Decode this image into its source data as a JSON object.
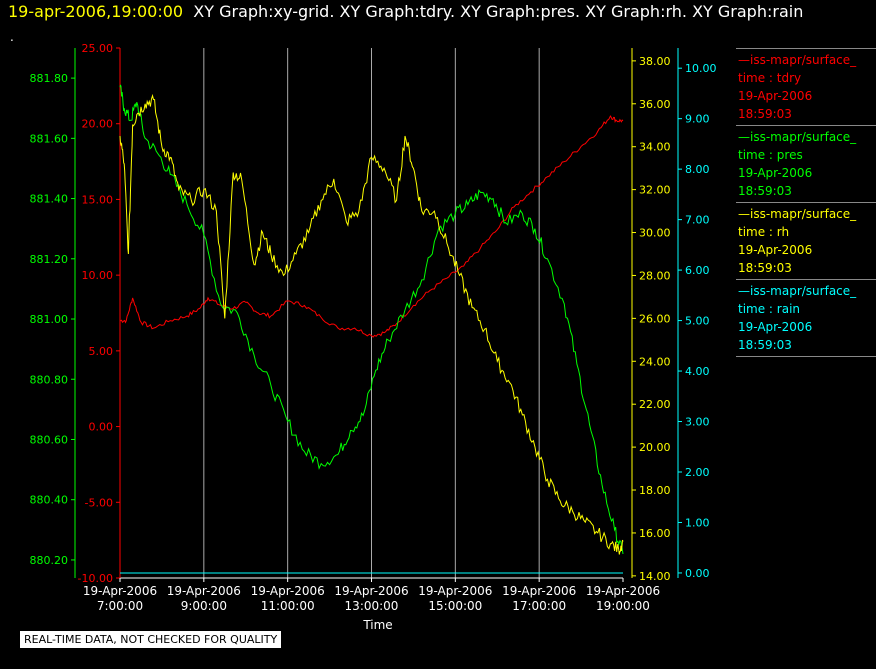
{
  "header": {
    "timestamp": "19-apr-2006,19:00:00",
    "graphs": "XY Graph:xy-grid.  XY Graph:tdry.  XY Graph:pres.  XY Graph:rh.  XY Graph:rain"
  },
  "dot": ".",
  "footer_note": "REAL-TIME DATA, NOT CHECKED FOR QUALITY",
  "legend": [
    {
      "source": "—iss-mapr/surface_",
      "field": "time : tdry",
      "date": "19-Apr-2006",
      "time": "18:59:03",
      "color": "#ff0000"
    },
    {
      "source": "—iss-mapr/surface_",
      "field": "time : pres",
      "date": "19-Apr-2006",
      "time": "18:59:03",
      "color": "#00ff00"
    },
    {
      "source": "—iss-mapr/surface_",
      "field": "time : rh",
      "date": "19-Apr-2006",
      "time": "18:59:03",
      "color": "#ffff00"
    },
    {
      "source": "—iss-mapr/surface_",
      "field": "time : rain",
      "date": "19-Apr-2006",
      "time": "18:59:03",
      "color": "#00ffff"
    }
  ],
  "chart_data": {
    "type": "line",
    "xlabel": "Time",
    "x_ticks": [
      {
        "hour": 7,
        "date": "19-Apr-2006",
        "time": "7:00:00"
      },
      {
        "hour": 9,
        "date": "19-Apr-2006",
        "time": "9:00:00"
      },
      {
        "hour": 11,
        "date": "19-Apr-2006",
        "time": "11:00:00"
      },
      {
        "hour": 13,
        "date": "19-Apr-2006",
        "time": "13:00:00"
      },
      {
        "hour": 15,
        "date": "19-Apr-2006",
        "time": "15:00:00"
      },
      {
        "hour": 17,
        "date": "19-Apr-2006",
        "time": "17:00:00"
      },
      {
        "hour": 19,
        "date": "19-Apr-2006",
        "time": "19:00:00"
      }
    ],
    "xlim": [
      7,
      19
    ],
    "grid": "vertical",
    "axes": {
      "pres": {
        "color": "#00ff00",
        "side": "left-outer",
        "lim": [
          880.14,
          881.9
        ],
        "ticks": [
          "880.20",
          "880.40",
          "880.60",
          "880.80",
          "881.00",
          "881.20",
          "881.40",
          "881.60",
          "881.80"
        ]
      },
      "tdry": {
        "color": "#ff0000",
        "side": "left-inner",
        "lim": [
          -10,
          25
        ],
        "ticks": [
          "-10.00",
          "-5.00",
          "0.00",
          "5.00",
          "10.00",
          "15.00",
          "20.00",
          "25.00"
        ]
      },
      "rh": {
        "color": "#ffff00",
        "side": "right-inner",
        "lim": [
          13.9,
          38.6
        ],
        "ticks": [
          "14.00",
          "16.00",
          "18.00",
          "20.00",
          "22.00",
          "24.00",
          "26.00",
          "28.00",
          "30.00",
          "32.00",
          "34.00",
          "36.00",
          "38.00"
        ]
      },
      "rain": {
        "color": "#00ffff",
        "side": "right-outer",
        "lim": [
          -0.1,
          10.4
        ],
        "ticks": [
          "0.00",
          "1.00",
          "2.00",
          "3.00",
          "4.00",
          "5.00",
          "6.00",
          "7.00",
          "8.00",
          "9.00",
          "10.00"
        ]
      }
    },
    "series": [
      {
        "name": "tdry",
        "axis": "tdry",
        "color": "#ff0000",
        "x": [
          7.0,
          7.15,
          7.3,
          7.5,
          7.8,
          8.2,
          8.6,
          8.9,
          9.1,
          9.4,
          9.7,
          10.0,
          10.3,
          10.6,
          11.0,
          11.4,
          11.8,
          12.2,
          12.6,
          13.0,
          13.3,
          13.6,
          14.0,
          14.4,
          14.8,
          15.2,
          15.6,
          16.0,
          16.4,
          16.8,
          17.2,
          17.6,
          18.0,
          18.4,
          18.7,
          18.85,
          19.0
        ],
        "values": [
          7.0,
          7.0,
          8.5,
          6.9,
          6.5,
          7.0,
          7.3,
          7.8,
          8.5,
          8.0,
          7.8,
          8.2,
          7.5,
          7.3,
          8.3,
          8.0,
          7.2,
          6.5,
          6.5,
          6.0,
          6.2,
          6.8,
          8.0,
          9.0,
          9.8,
          10.6,
          11.8,
          13.0,
          14.5,
          15.5,
          16.5,
          17.5,
          18.5,
          19.5,
          20.5,
          20.2,
          20.2
        ]
      },
      {
        "name": "pres",
        "axis": "pres",
        "color": "#00ff00",
        "x": [
          7.0,
          7.1,
          7.25,
          7.4,
          7.6,
          7.9,
          8.2,
          8.6,
          9.0,
          9.4,
          9.8,
          10.2,
          10.6,
          11.0,
          11.4,
          11.8,
          12.2,
          12.5,
          12.8,
          13.1,
          13.4,
          13.8,
          14.2,
          14.6,
          15.0,
          15.3,
          15.6,
          15.9,
          16.2,
          16.6,
          16.9,
          17.2,
          17.6,
          17.9,
          18.2,
          18.5,
          18.8,
          19.0
        ],
        "values": [
          881.77,
          881.7,
          881.66,
          881.72,
          881.6,
          881.55,
          881.48,
          881.38,
          881.28,
          881.05,
          881.02,
          880.88,
          880.78,
          880.66,
          880.56,
          880.52,
          880.55,
          880.63,
          880.68,
          880.83,
          880.93,
          881.03,
          881.13,
          881.3,
          881.35,
          881.38,
          881.42,
          881.4,
          881.32,
          881.35,
          881.3,
          881.2,
          881.05,
          880.85,
          880.65,
          880.45,
          880.3,
          880.22
        ]
      },
      {
        "name": "rh",
        "axis": "rh",
        "color": "#ffff00",
        "x": [
          7.0,
          7.1,
          7.2,
          7.3,
          7.4,
          7.6,
          7.8,
          8.0,
          8.2,
          8.4,
          8.7,
          9.0,
          9.3,
          9.5,
          9.7,
          9.9,
          10.2,
          10.4,
          10.6,
          10.9,
          11.2,
          11.5,
          11.8,
          12.1,
          12.4,
          12.7,
          13.0,
          13.3,
          13.6,
          13.8,
          14.0,
          14.2,
          14.5,
          14.8,
          15.1,
          15.4,
          15.7,
          16.0,
          16.3,
          16.6,
          16.9,
          17.2,
          17.5,
          17.8,
          18.1,
          18.4,
          18.7,
          18.9,
          19.0
        ],
        "values": [
          34.5,
          33.2,
          29.0,
          35.0,
          35.5,
          36.0,
          36.2,
          34.0,
          33.5,
          32.0,
          31.5,
          32.0,
          31.0,
          26.0,
          32.8,
          32.5,
          28.5,
          30.0,
          29.0,
          28.0,
          29.0,
          30.0,
          31.5,
          32.5,
          30.5,
          31.0,
          33.5,
          33.0,
          31.5,
          34.5,
          33.0,
          31.0,
          31.0,
          29.5,
          28.0,
          26.5,
          25.5,
          24.0,
          23.0,
          21.5,
          20.0,
          18.5,
          17.5,
          17.0,
          16.5,
          16.0,
          15.5,
          15.2,
          15.6
        ]
      },
      {
        "name": "rain",
        "axis": "rain",
        "color": "#00ffff",
        "x": [
          7.0,
          19.0
        ],
        "values": [
          0.0,
          0.0
        ]
      }
    ]
  }
}
